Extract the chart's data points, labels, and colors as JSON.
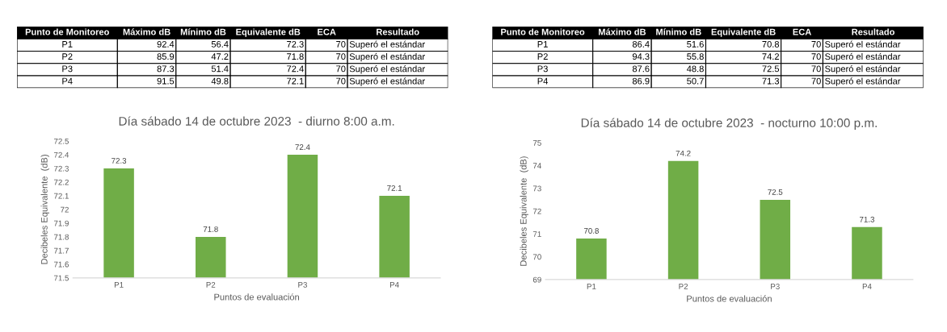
{
  "chart_data": [
    {
      "type": "other",
      "categories": [
        "Punto de Monitoreo",
        "Máximo dB",
        "Mínimo dB",
        "Equivalente dB",
        "ECA",
        "Resultado"
      ],
      "annotations": [
        "P1",
        "92.4",
        "56.4",
        "72.3",
        "70",
        "Superó el estándar",
        "P2",
        "85.9",
        "47.2",
        "71.8",
        "70",
        "Superó el estándar",
        "P3",
        "87.3",
        "51.4",
        "72.4",
        "70",
        "Superó el estándar",
        "P4",
        "91.5",
        "49.8",
        "72.1",
        "70",
        "Superó el estándar"
      ]
    },
    {
      "type": "bar",
      "title": "Día sábado 14 de octubre 2023  - diurno 8:00 a.m.",
      "xlabel": "Puntos de evaluación",
      "ylabel": "Decibeles Equivalente  (dB)",
      "categories": [
        "P1",
        "P2",
        "P3",
        "P4"
      ],
      "values": [
        72.3,
        71.8,
        72.4,
        72.1
      ],
      "color": "#70ad47",
      "ylim": [
        71.5,
        72.5
      ],
      "yticks": [
        71.5,
        71.6,
        71.7,
        71.8,
        71.9,
        72,
        72.1,
        72.2,
        72.3,
        72.4,
        72.5
      ],
      "data_labels": true
    },
    {
      "type": "other",
      "categories": [
        "Punto de Monitoreo",
        "Máximo dB",
        "Mínimo dB",
        "Equivalente dB",
        "ECA",
        "Resultado"
      ],
      "annotations": [
        "P1",
        "86.4",
        "51.6",
        "70.8",
        "70",
        "Superó el estándar",
        "P2",
        "94.3",
        "55.8",
        "74.2",
        "70",
        "Superó el estándar",
        "P3",
        "87.6",
        "48.8",
        "72.5",
        "70",
        "Superó el estándar",
        "P4",
        "86.9",
        "50.7",
        "71.3",
        "70",
        "Superó el estándar"
      ]
    },
    {
      "type": "bar",
      "title": "Día sábado 14 de octubre 2023  - nocturno 10:00 p.m.",
      "xlabel": "Puntos de evaluación",
      "ylabel": "Decibeles Equivalente  (dB)",
      "categories": [
        "P1",
        "P2",
        "P3",
        "P4"
      ],
      "values": [
        70.8,
        74.2,
        72.5,
        71.3
      ],
      "color": "#70ad47",
      "ylim": [
        69,
        75
      ],
      "yticks": [
        69,
        70,
        71,
        72,
        73,
        74,
        75
      ],
      "data_labels": true
    }
  ]
}
